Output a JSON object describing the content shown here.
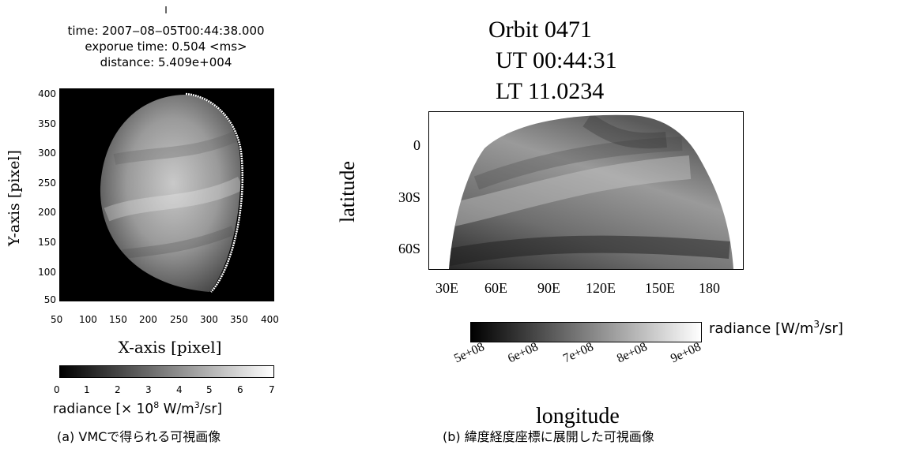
{
  "panel_a": {
    "header_mark": "I",
    "header_time": "time: 2007‒08‒05T00:44:38.000",
    "header_exposure": "exporue time: 0.504 <ms>",
    "header_distance": "distance: 5.409e+004",
    "y_ticks": [
      "400",
      "350",
      "300",
      "250",
      "200",
      "150",
      "100",
      "50"
    ],
    "x_ticks": [
      "50",
      "100",
      "150",
      "200",
      "250",
      "300",
      "350",
      "400"
    ],
    "y_label": "Y-axis [pixel]",
    "x_label": "X-axis [pixel]",
    "colorbar_ticks": [
      "0",
      "1",
      "2",
      "3",
      "4",
      "5",
      "6",
      "7"
    ],
    "colorbar_label_prefix": "radiance [× 10",
    "colorbar_label_exp": "8",
    "colorbar_label_mid": " W/m",
    "colorbar_label_exp2": "3",
    "colorbar_label_suffix": "/sr]",
    "caption": "(a) VMCで得られる可視画像"
  },
  "panel_b": {
    "title_orbit": "Orbit 0471",
    "title_ut": "UT 00:44:31",
    "title_lt": "LT 11.0234",
    "y_ticks": [
      "0",
      "30S",
      "60S"
    ],
    "x_ticks": [
      "30E",
      "60E",
      "90E",
      "120E",
      "150E",
      "180"
    ],
    "y_label": "latitude",
    "x_label": "longitude",
    "colorbar_ticks": [
      "5e+08",
      "6e+08",
      "7e+08",
      "8e+08",
      "9e+08"
    ],
    "colorbar_label_prefix": "radiance [W/m",
    "colorbar_label_exp": "3",
    "colorbar_label_suffix": "/sr]",
    "caption": "(b) 緯度経度座標に展開した可視画像"
  }
}
